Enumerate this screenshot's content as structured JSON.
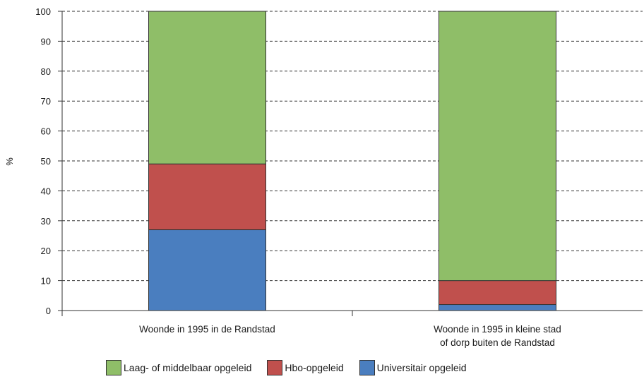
{
  "chart_data": {
    "type": "bar",
    "stacked": true,
    "ylabel": "%",
    "ylim": [
      0,
      100
    ],
    "yticks": [
      "0",
      "10",
      "20",
      "30",
      "40",
      "50",
      "60",
      "70",
      "80",
      "90",
      "100"
    ],
    "grid": true,
    "legend_position": "bottom",
    "categories": [
      [
        "Woonde in 1995 in de Randstad"
      ],
      [
        "Woonde in 1995 in kleine stad",
        "of dorp buiten de Randstad"
      ]
    ],
    "series": [
      {
        "name": "Universitair opgeleid",
        "color": "#4a7ebf",
        "values": [
          27,
          2
        ]
      },
      {
        "name": "Hbo-opgeleid",
        "color": "#c0504d",
        "values": [
          22,
          8
        ]
      },
      {
        "name": "Laag- of middelbaar opgeleid",
        "color": "#8fbe68",
        "values": [
          51,
          90
        ]
      }
    ],
    "legend_order": [
      2,
      1,
      0
    ]
  }
}
